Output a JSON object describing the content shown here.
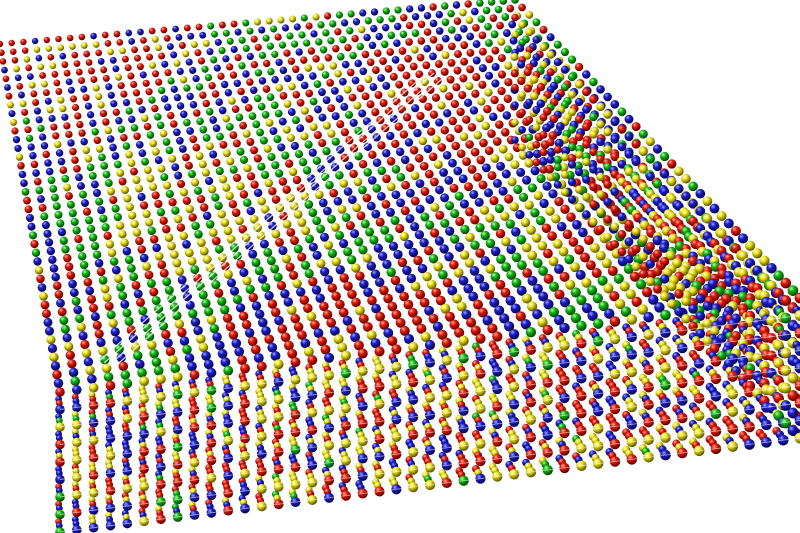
{
  "scene": {
    "subject": "lattice-slab",
    "background": "#ffffff",
    "atom_colors": {
      "red": "#d40000",
      "blue": "#1414b4",
      "green": "#12a012",
      "yellow": "#e6dc14"
    },
    "plane_line_color": "#ffffff"
  }
}
